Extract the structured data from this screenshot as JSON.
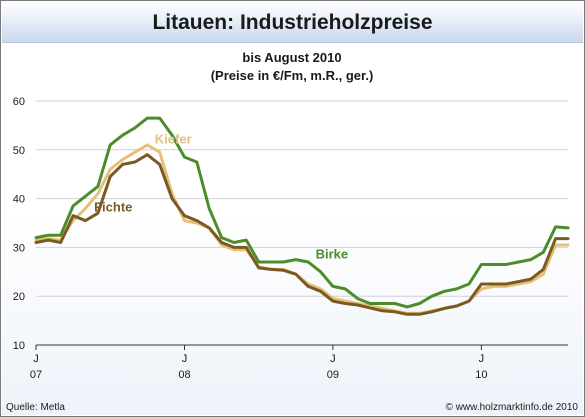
{
  "title": "Litauen: Industrieholzpreise",
  "subtitle_line1": "bis August 2010",
  "subtitle_line2": "(Preise in €/Fm, m.R., ger.)",
  "source": "Quelle: Metla",
  "credit": "© www.holzmarktinfo.de 2010",
  "chart_data": {
    "type": "line",
    "title": "Litauen: Industrieholzpreise",
    "subtitle": "bis August 2010 (Preise in €/Fm, m.R., ger.)",
    "xlabel": "",
    "ylabel": "",
    "ylim": [
      10,
      60
    ],
    "yticks": [
      10,
      20,
      30,
      40,
      50,
      60
    ],
    "xlim": [
      0,
      43
    ],
    "xticks": [
      {
        "x": 0,
        "label": "J",
        "year": "07"
      },
      {
        "x": 12,
        "label": "J",
        "year": "08"
      },
      {
        "x": 24,
        "label": "J",
        "year": "09"
      },
      {
        "x": 36,
        "label": "J",
        "year": "10"
      }
    ],
    "grid": "horizontal",
    "colors": {
      "Birke": "#4c8c2b",
      "Kiefer": "#e6c078",
      "Fichte": "#7a5a22",
      "grid": "#d2d2d2"
    },
    "series": [
      {
        "name": "Birke",
        "values": [
          32,
          32.5,
          32.5,
          38.5,
          40.5,
          42.5,
          51,
          53,
          54.5,
          56.5,
          56.5,
          53,
          48.5,
          47.5,
          38,
          32,
          31,
          31.5,
          27,
          27,
          27,
          27.5,
          27,
          25,
          22,
          21.5,
          19.5,
          18.5,
          18.5,
          18.5,
          17.8,
          18.5,
          20,
          21,
          21.5,
          22.5,
          26.5,
          26.5,
          26.5,
          27,
          27.5,
          29,
          34.2,
          34
        ]
      },
      {
        "name": "Kiefer",
        "values": [
          31.5,
          31.8,
          31.5,
          35.5,
          38,
          41,
          46,
          48,
          49.5,
          51,
          49.5,
          41,
          35.5,
          35,
          34,
          30.5,
          29.5,
          29.5,
          26,
          25.5,
          25.5,
          24.5,
          22.5,
          21.5,
          19.5,
          19,
          18.5,
          18,
          17.5,
          17,
          16.5,
          16.5,
          17,
          17.5,
          18,
          19,
          21.5,
          22,
          22,
          22.5,
          23,
          24.5,
          30.5,
          30.5
        ]
      },
      {
        "name": "Fichte",
        "values": [
          31,
          31.5,
          31,
          36.5,
          35.5,
          37,
          44.5,
          47,
          47.5,
          49,
          47,
          40,
          36.5,
          35.5,
          34,
          31,
          30,
          30,
          25.8,
          25.5,
          25.3,
          24.5,
          22,
          21,
          19,
          18.5,
          18.2,
          17.6,
          17,
          16.8,
          16.3,
          16.3,
          16.8,
          17.5,
          18,
          19,
          22.5,
          22.5,
          22.5,
          23,
          23.5,
          25.5,
          31.8,
          31.8
        ]
      }
    ],
    "annotations": [
      {
        "text": "Kiefer",
        "series": "Kiefer",
        "x": 9.6,
        "y": 51.3
      },
      {
        "text": "Fichte",
        "series": "Fichte",
        "x": 4.7,
        "y": 37.4
      },
      {
        "text": "Birke",
        "series": "Birke",
        "x": 22.6,
        "y": 27.7
      }
    ]
  }
}
